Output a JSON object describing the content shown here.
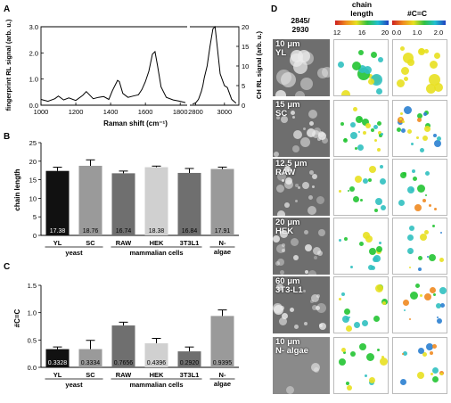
{
  "panel_letters": {
    "a": "A",
    "b": "B",
    "c": "C",
    "d": "D"
  },
  "colors": {
    "black": "#111111",
    "dark_gray": "#6f6f6f",
    "mid_gray": "#9a9a9a",
    "light_gray": "#d0d0d0",
    "map_green": "#22c432",
    "map_yellow": "#e8e020"
  },
  "chart_data": [
    {
      "type": "line",
      "panel": "A",
      "xlabel": "Raman shift (cm⁻¹)",
      "ylabel_left": "fingerprint RL signal (arb. u.)",
      "ylabel_right": "CH RL signal (arb. u.)",
      "xlim": [
        1000,
        3100
      ],
      "ylim_left": [
        0,
        3.0
      ],
      "ylim_right": [
        0,
        20
      ],
      "x_ticks": [
        "1000",
        "1200",
        "1400",
        "1600",
        "1800",
        "2800",
        "3000"
      ],
      "y_ticks_left": [
        "0.0",
        "1.0",
        "2.0",
        "3.0"
      ],
      "y_ticks_right": [
        "0",
        "5",
        "10",
        "15",
        "20"
      ],
      "series": [
        {
          "axis": "left",
          "x": [
            1000,
            1040,
            1080,
            1100,
            1130,
            1160,
            1200,
            1240,
            1260,
            1300,
            1330,
            1360,
            1390,
            1410,
            1440,
            1450,
            1470,
            1500,
            1530,
            1560,
            1580,
            1600,
            1620,
            1640,
            1655,
            1670,
            1690,
            1720,
            1760,
            1800,
            1830
          ],
          "y": [
            0.22,
            0.15,
            0.25,
            0.35,
            0.2,
            0.28,
            0.18,
            0.38,
            0.52,
            0.25,
            0.3,
            0.33,
            0.22,
            0.55,
            0.95,
            0.9,
            0.45,
            0.3,
            0.35,
            0.4,
            0.6,
            0.9,
            1.3,
            1.95,
            2.05,
            1.5,
            0.7,
            0.3,
            0.2,
            0.15,
            0.1
          ]
        },
        {
          "axis": "right",
          "x": [
            2780,
            2800,
            2820,
            2840,
            2850,
            2860,
            2880,
            2900,
            2920,
            2935,
            2950,
            2970,
            3000,
            3020,
            3050,
            3080
          ],
          "y": [
            0.3,
            0.6,
            1.5,
            3.5,
            5,
            7,
            10,
            15,
            19.5,
            20,
            15,
            8,
            5,
            4.5,
            1.5,
            0.5
          ]
        }
      ]
    },
    {
      "type": "bar",
      "panel": "B",
      "categories": [
        "YL",
        "SC",
        "RAW",
        "HEK",
        "3T3L1",
        "N-\nalgae"
      ],
      "values": [
        17.38,
        18.76,
        16.74,
        18.38,
        16.84,
        17.91
      ],
      "errors": [
        1.0,
        1.6,
        0.6,
        0.3,
        1.2,
        0.5
      ],
      "value_labels": [
        "17.38",
        "18.76",
        "16.74",
        "18.38",
        "16.84",
        "17.91"
      ],
      "ylabel": "chain length",
      "ylim": [
        0,
        25
      ],
      "y_ticks": [
        "0",
        "5",
        "10",
        "15",
        "20",
        "25"
      ],
      "groups": [
        "yeast",
        "mammalian cells",
        "algae"
      ]
    },
    {
      "type": "bar",
      "panel": "C",
      "categories": [
        "YL",
        "SC",
        "RAW",
        "HEK",
        "3T3L1",
        "N-\nalgae"
      ],
      "values": [
        0.3328,
        0.3334,
        0.7656,
        0.4396,
        0.292,
        0.9395
      ],
      "errors": [
        0.04,
        0.16,
        0.06,
        0.09,
        0.08,
        0.11
      ],
      "value_labels": [
        "0.3328",
        "0.3334",
        "0.7656",
        "0.4396",
        "0.2920",
        "0.9395"
      ],
      "ylabel": "#C=C",
      "ylim": [
        0,
        1.5
      ],
      "y_ticks": [
        "0.0",
        "0.5",
        "1.0",
        "1.5"
      ],
      "groups": [
        "yeast",
        "mammalian cells",
        "algae"
      ]
    }
  ],
  "panel_d": {
    "col_header_1": "2845/\n2930",
    "col_header_2": "chain\nlength",
    "col_header_3": "#C=C",
    "colorbar_chain": {
      "ticks": [
        "12",
        "16",
        "20"
      ]
    },
    "colorbar_cc": {
      "ticks": [
        "0.0",
        "1.0",
        "2.0"
      ]
    },
    "rows": [
      {
        "label": "10 μm\nYL"
      },
      {
        "label": "15 μm\nSC"
      },
      {
        "label": "12.5 μm\nRAW"
      },
      {
        "label": "20 μm\nHEK"
      },
      {
        "label": "60 μm\n3T3-L1"
      },
      {
        "label": "10 μm\nN- algae"
      }
    ]
  }
}
